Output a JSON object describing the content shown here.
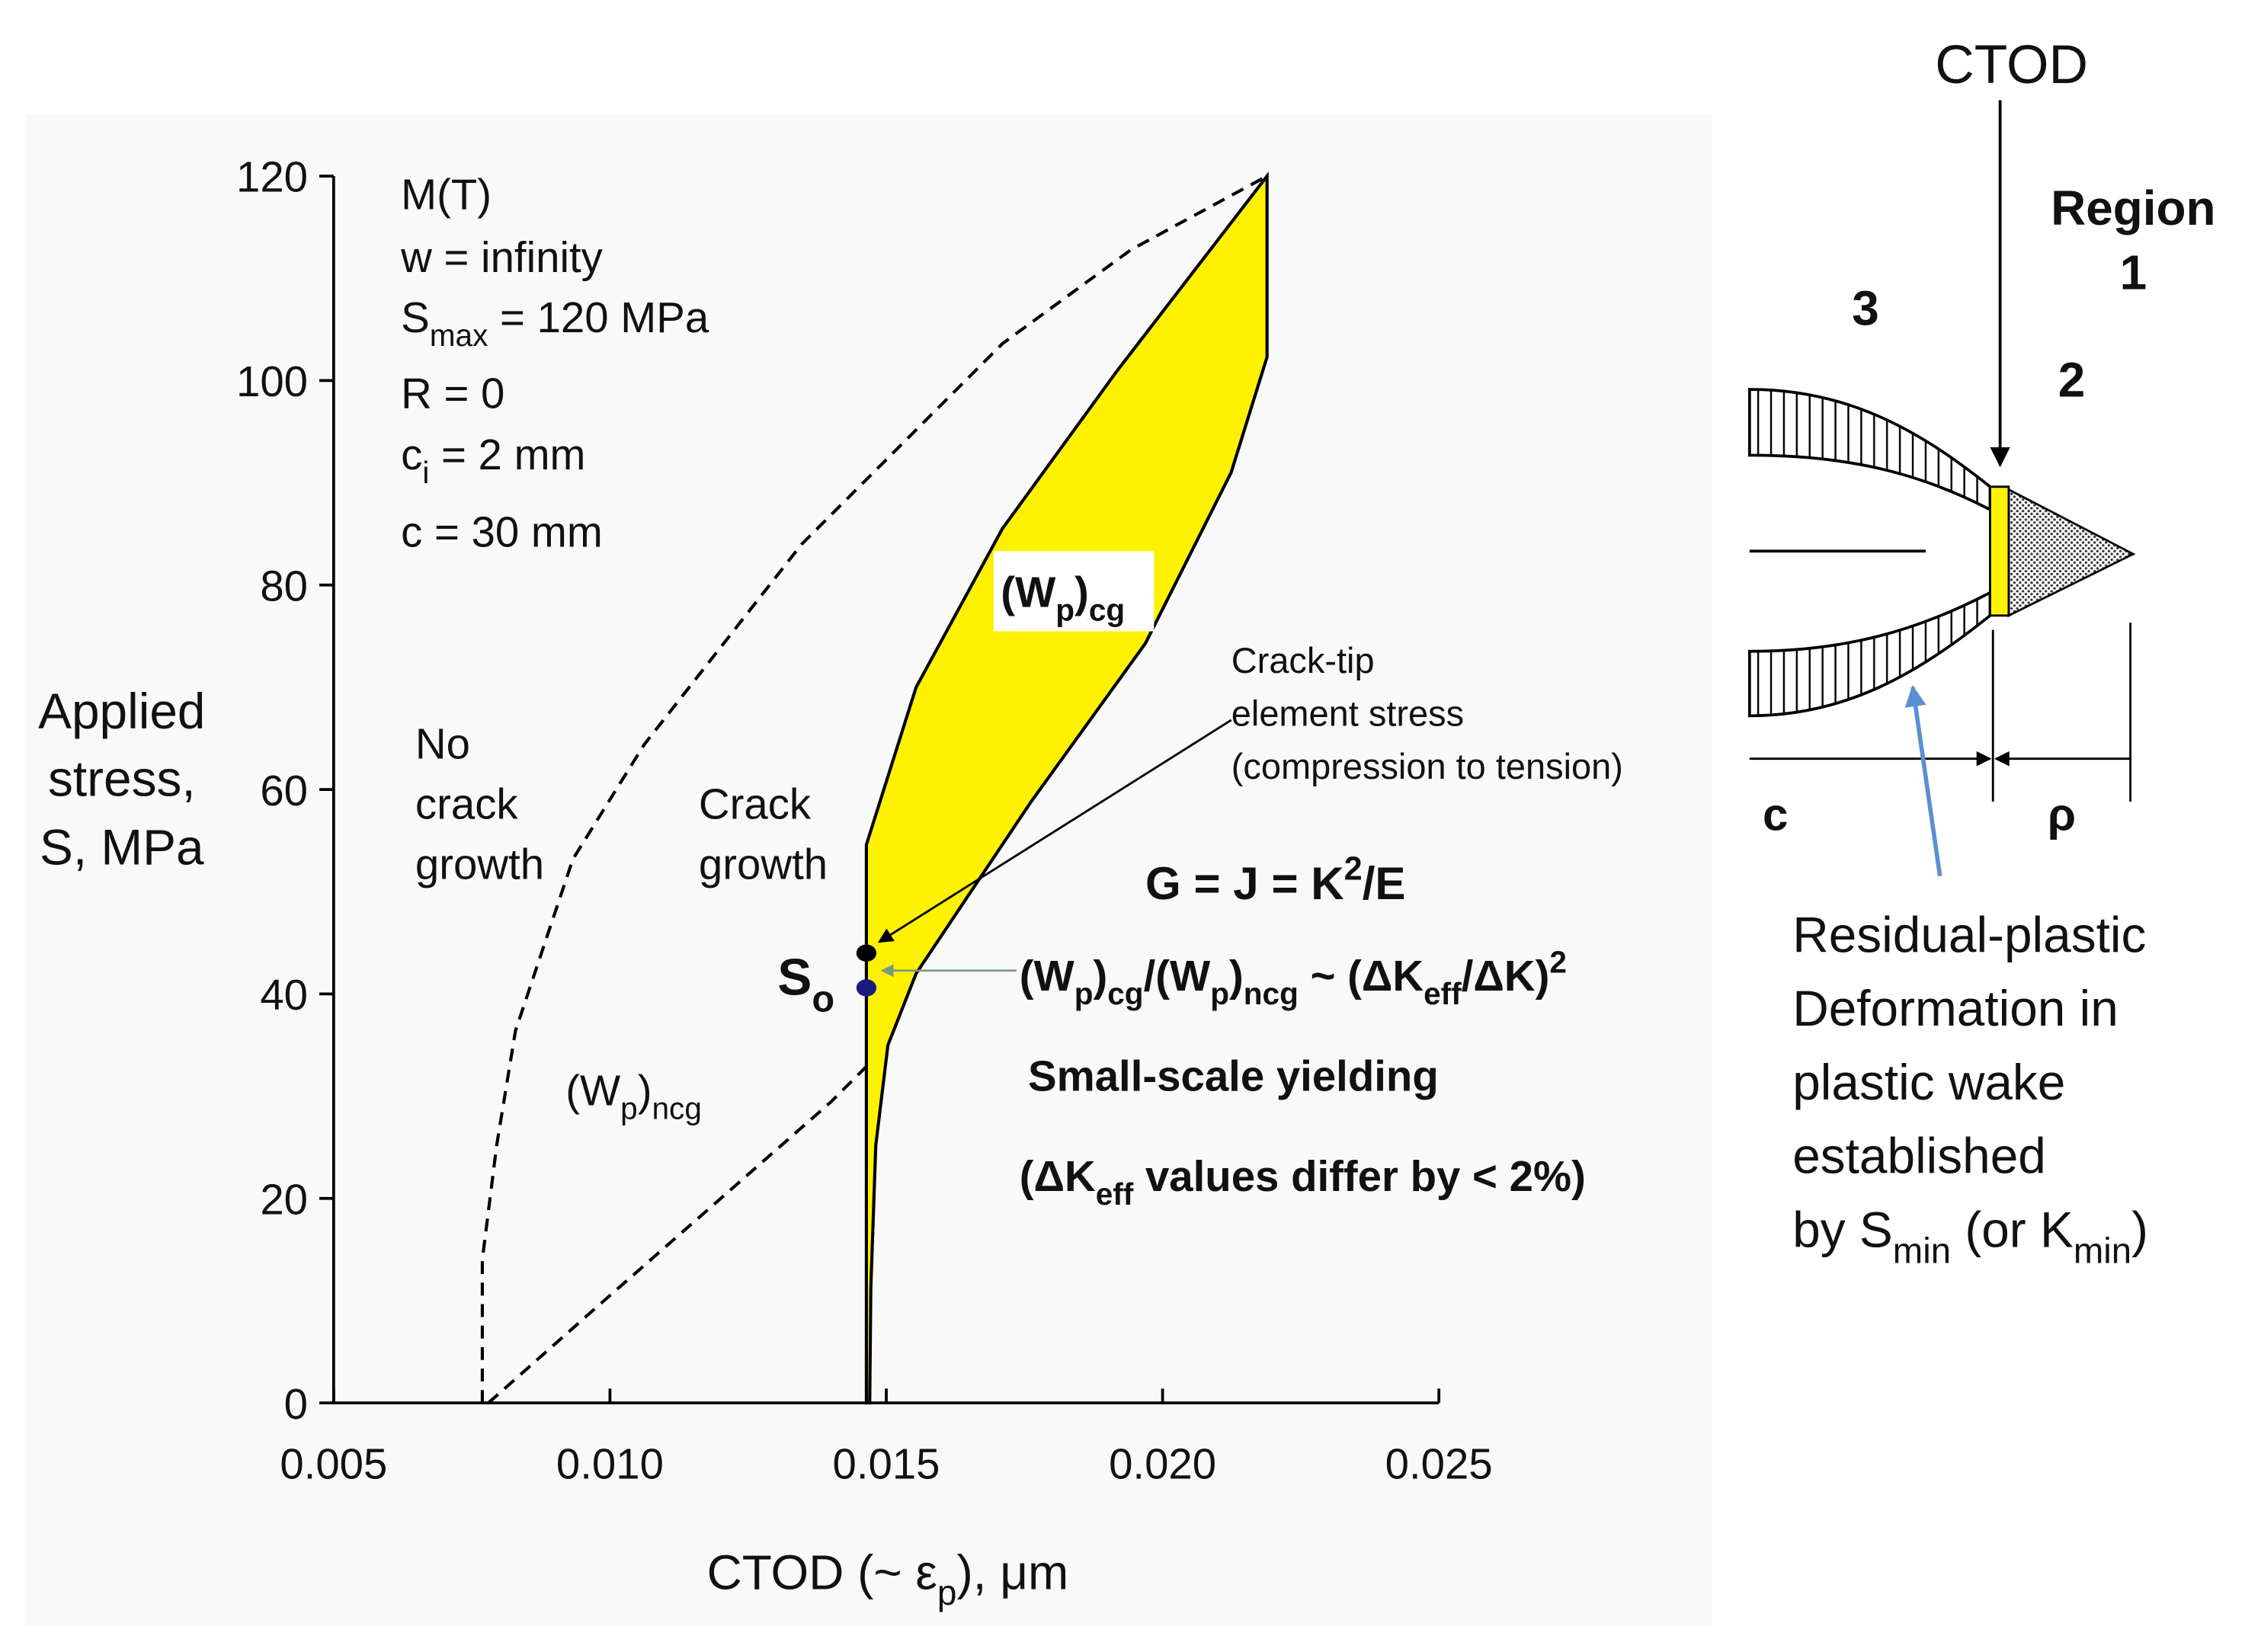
{
  "chart_data": {
    "type": "line",
    "xlabel": [
      {
        "t": "CTOD (~ ε"
      },
      {
        "sub": "p"
      },
      {
        "t": "), μm"
      }
    ],
    "ylabel": [
      "Applied",
      "stress,",
      "S, MPa"
    ],
    "xlim": [
      0.005,
      0.025
    ],
    "ylim": [
      0,
      120
    ],
    "xticks": [
      0.005,
      {
        "value": 0.01,
        "label": "0.010"
      },
      0.015,
      {
        "value": 0.02,
        "label": "0.020"
      },
      0.025
    ],
    "yticks": [
      0,
      20,
      40,
      60,
      80,
      100,
      120
    ],
    "series": [
      {
        "color": "#000000",
        "style": "dashed",
        "x": [
          0.00769,
          0.00769,
          0.00795,
          0.00829,
          0.00933,
          0.01062,
          0.01347,
          0.0171,
          0.01943,
          0.02189
        ],
        "values": [
          0,
          14,
          25.2,
          36.4,
          53.2,
          64.4,
          84,
          103.6,
          112.8,
          120
        ]
      },
      {
        "color": "#000000",
        "style": "dashed",
        "x": [
          0.0078,
          0.00985,
          0.01192,
          0.01399,
          0.01503
        ],
        "values": [
          0,
          9.8,
          19.6,
          29.4,
          35
        ]
      },
      {
        "color": "#000000",
        "fill": "#fff200",
        "style": "solid",
        "x": [
          0.01464,
          0.01464,
          0.01554,
          0.0171,
          0.01917,
          0.02189,
          0.02189,
          0.02124,
          0.01969,
          0.01762,
          0.01554,
          0.01503,
          0.01481,
          0.01472,
          0.0147
        ],
        "values": [
          0,
          54.6,
          70,
          85.5,
          100.9,
          120,
          102.3,
          91,
          74.3,
          58.8,
          42,
          35,
          25.2,
          11.2,
          0
        ]
      }
    ],
    "points": [
      {
        "x": 0.01464,
        "y": 44,
        "color": "#000000"
      },
      {
        "x": 0.01464,
        "y": 40.6,
        "color": "#1a1a80"
      }
    ],
    "annotations": [
      "M(T)",
      "w = infinity",
      [
        {
          "t": "S"
        },
        {
          "sub": "max"
        },
        {
          "t": " = 120 MPa"
        }
      ],
      "R = 0",
      [
        {
          "t": "c"
        },
        {
          "sub": "i"
        },
        {
          "t": " = 2 mm"
        }
      ],
      "c = 30 mm",
      "No",
      "crack",
      "growth",
      "Crack",
      "growth",
      [
        {
          "t": "(W"
        },
        {
          "sub": "p"
        },
        {
          "t": ")"
        },
        {
          "sub": "ncg"
        }
      ],
      [
        {
          "t": "(W"
        },
        {
          "sub": "p"
        },
        {
          "t": ")"
        },
        {
          "sub": "cg"
        }
      ],
      "Crack-tip",
      "element stress",
      "(compression to tension)",
      [
        {
          "t": "G = J = K"
        },
        {
          "sup": "2"
        },
        {
          "t": "/E"
        }
      ],
      [
        {
          "t": "(W"
        },
        {
          "sub": "p"
        },
        {
          "t": ")"
        },
        {
          "sub": "cg"
        },
        {
          "t": "/(W"
        },
        {
          "sub": "p"
        },
        {
          "t": ")"
        },
        {
          "sub": "ncg"
        },
        {
          "t": " ~ (ΔK"
        },
        {
          "sub": "eff"
        },
        {
          "t": "/ΔK)"
        },
        {
          "sup": "2"
        }
      ],
      "Small-scale yielding",
      [
        {
          "t": "(ΔK"
        },
        {
          "sub": "eff"
        },
        {
          "t": " values differ by < 2%)"
        }
      ],
      [
        {
          "t": "S"
        },
        {
          "sub": "o"
        }
      ]
    ]
  },
  "diagram": {
    "labels": [
      "CTOD",
      "Region",
      "1",
      "3",
      "2",
      "c",
      "ρ"
    ],
    "note": [
      "Residual-plastic",
      "Deformation in",
      "plastic wake",
      "established",
      [
        {
          "t": "by S"
        },
        {
          "sub": "min"
        },
        {
          "t": " (or K"
        },
        {
          "sub": "min"
        },
        {
          "t": ")"
        }
      ]
    ]
  }
}
